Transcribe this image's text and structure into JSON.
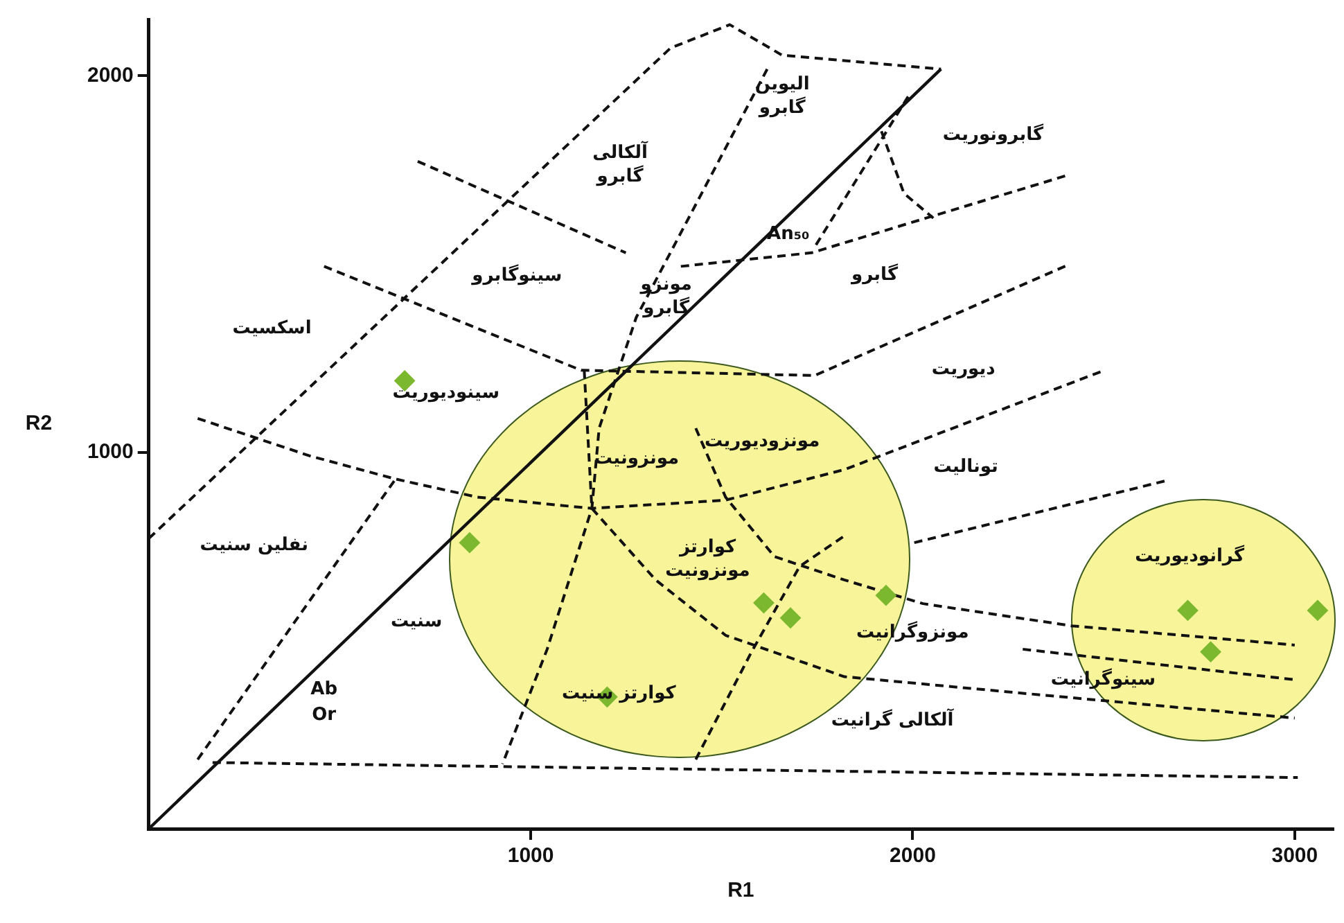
{
  "chart_data": {
    "type": "scatter",
    "xlabel": "R1",
    "ylabel": "R2",
    "xlim": [
      0,
      3100
    ],
    "ylim": [
      0,
      2150
    ],
    "xticks": [
      1000,
      2000,
      3000
    ],
    "yticks": [
      1000,
      2000
    ],
    "grid": false,
    "legend": false,
    "series": [
      {
        "type": "scatter",
        "color": "#7cb82f",
        "marker": "diamond",
        "x": [
          670,
          840,
          1200,
          1610,
          1680,
          1930,
          2720,
          2780,
          3060
        ],
        "values": [
          1190,
          760,
          350,
          600,
          560,
          620,
          580,
          470,
          580
        ]
      },
      {
        "type": "line",
        "color": "#111111",
        "line_style": "solid",
        "x": [
          0,
          2074
        ],
        "values": [
          0,
          2018
        ]
      },
      {
        "type": "line",
        "color": "#111111",
        "line_style": "dashed",
        "x": [
          167,
          3008
        ],
        "values": [
          176,
          136
        ]
      },
      {
        "type": "line",
        "color": "#111111",
        "line_style": "dashed",
        "x": [
          128,
          646
        ],
        "values": [
          184,
          929
        ]
      },
      {
        "type": "line",
        "color": "#111111",
        "line_style": "dashed",
        "x": [
          0,
          1366,
          1521,
          1658,
          2074
        ],
        "values": [
          771,
          2074,
          2136,
          2055,
          2018
        ]
      },
      {
        "type": "line",
        "color": "#111111",
        "line_style": "dashed",
        "x": [
          1619,
          1276,
          1179,
          1160,
          1043,
          926
        ],
        "values": [
          2018,
          1358,
          1064,
          851,
          477,
          172
        ]
      },
      {
        "type": "line",
        "color": "#111111",
        "line_style": "dashed",
        "x": [
          1393,
          1735,
          2405
        ],
        "values": [
          1494,
          1530,
          1736
        ]
      },
      {
        "type": "line",
        "color": "#111111",
        "line_style": "dashed",
        "x": [
          1988,
          1740
        ],
        "values": [
          1945,
          1540
        ]
      },
      {
        "type": "line",
        "color": "#111111",
        "line_style": "dashed",
        "x": [
          1918,
          1977,
          2054
        ],
        "values": [
          1853,
          1688,
          1622
        ]
      },
      {
        "type": "line",
        "color": "#111111",
        "line_style": "dashed",
        "x": [
          704,
          1249
        ],
        "values": [
          1773,
          1530
        ]
      },
      {
        "type": "line",
        "color": "#111111",
        "line_style": "dashed",
        "x": [
          459,
          1132,
          1743,
          2405
        ],
        "values": [
          1494,
          1218,
          1204,
          1497
        ]
      },
      {
        "type": "line",
        "color": "#111111",
        "line_style": "dashed",
        "x": [
          128,
          420,
          646,
          860,
          1160,
          1510,
          1821,
          2502
        ],
        "values": [
          1090,
          991,
          929,
          881,
          851,
          873,
          954,
          1218
        ]
      },
      {
        "type": "line",
        "color": "#111111",
        "line_style": "dashed",
        "x": [
          1140,
          1160,
          1327,
          1510,
          1821,
          2288,
          3000
        ],
        "values": [
          1218,
          851,
          661,
          514,
          404,
          360,
          294
        ]
      },
      {
        "type": "line",
        "color": "#111111",
        "line_style": "dashed",
        "x": [
          1432,
          1510,
          1638,
          1821,
          2027,
          2416,
          3000
        ],
        "values": [
          1064,
          881,
          723,
          661,
          598,
          539,
          488
        ]
      },
      {
        "type": "line",
        "color": "#111111",
        "line_style": "dashed",
        "x": [
          1432,
          1576,
          1704,
          1821
        ],
        "values": [
          184,
          466,
          697,
          778
        ]
      },
      {
        "type": "line",
        "color": "#111111",
        "line_style": "dashed",
        "x": [
          2004,
          2665
        ],
        "values": [
          760,
          925
        ]
      },
      {
        "type": "line",
        "color": "#111111",
        "line_style": "dashed",
        "x": [
          2288,
          3000
        ],
        "values": [
          477,
          396
        ]
      }
    ],
    "annotations": [
      "آلکالی\nگابرو",
      "الیوین\nگابرو",
      "گابرونوریت",
      "سینوگابرو",
      "مونزو\nگابرو",
      "اسکسیت",
      "گابرو",
      "سینودیوریت",
      "دیوریت",
      "مونزودیوریت",
      "مونزونیت",
      "تونالیت",
      "نفلین سنیت",
      "کوارتز\nمونزونیت",
      "گرانودیوریت",
      "مونزوگرانیت",
      "سنیت",
      "سینوگرانیت",
      "کوارتز سنیت",
      "آلکالی گرانیت",
      "Ab",
      "Or",
      "An₅₀"
    ]
  }
}
